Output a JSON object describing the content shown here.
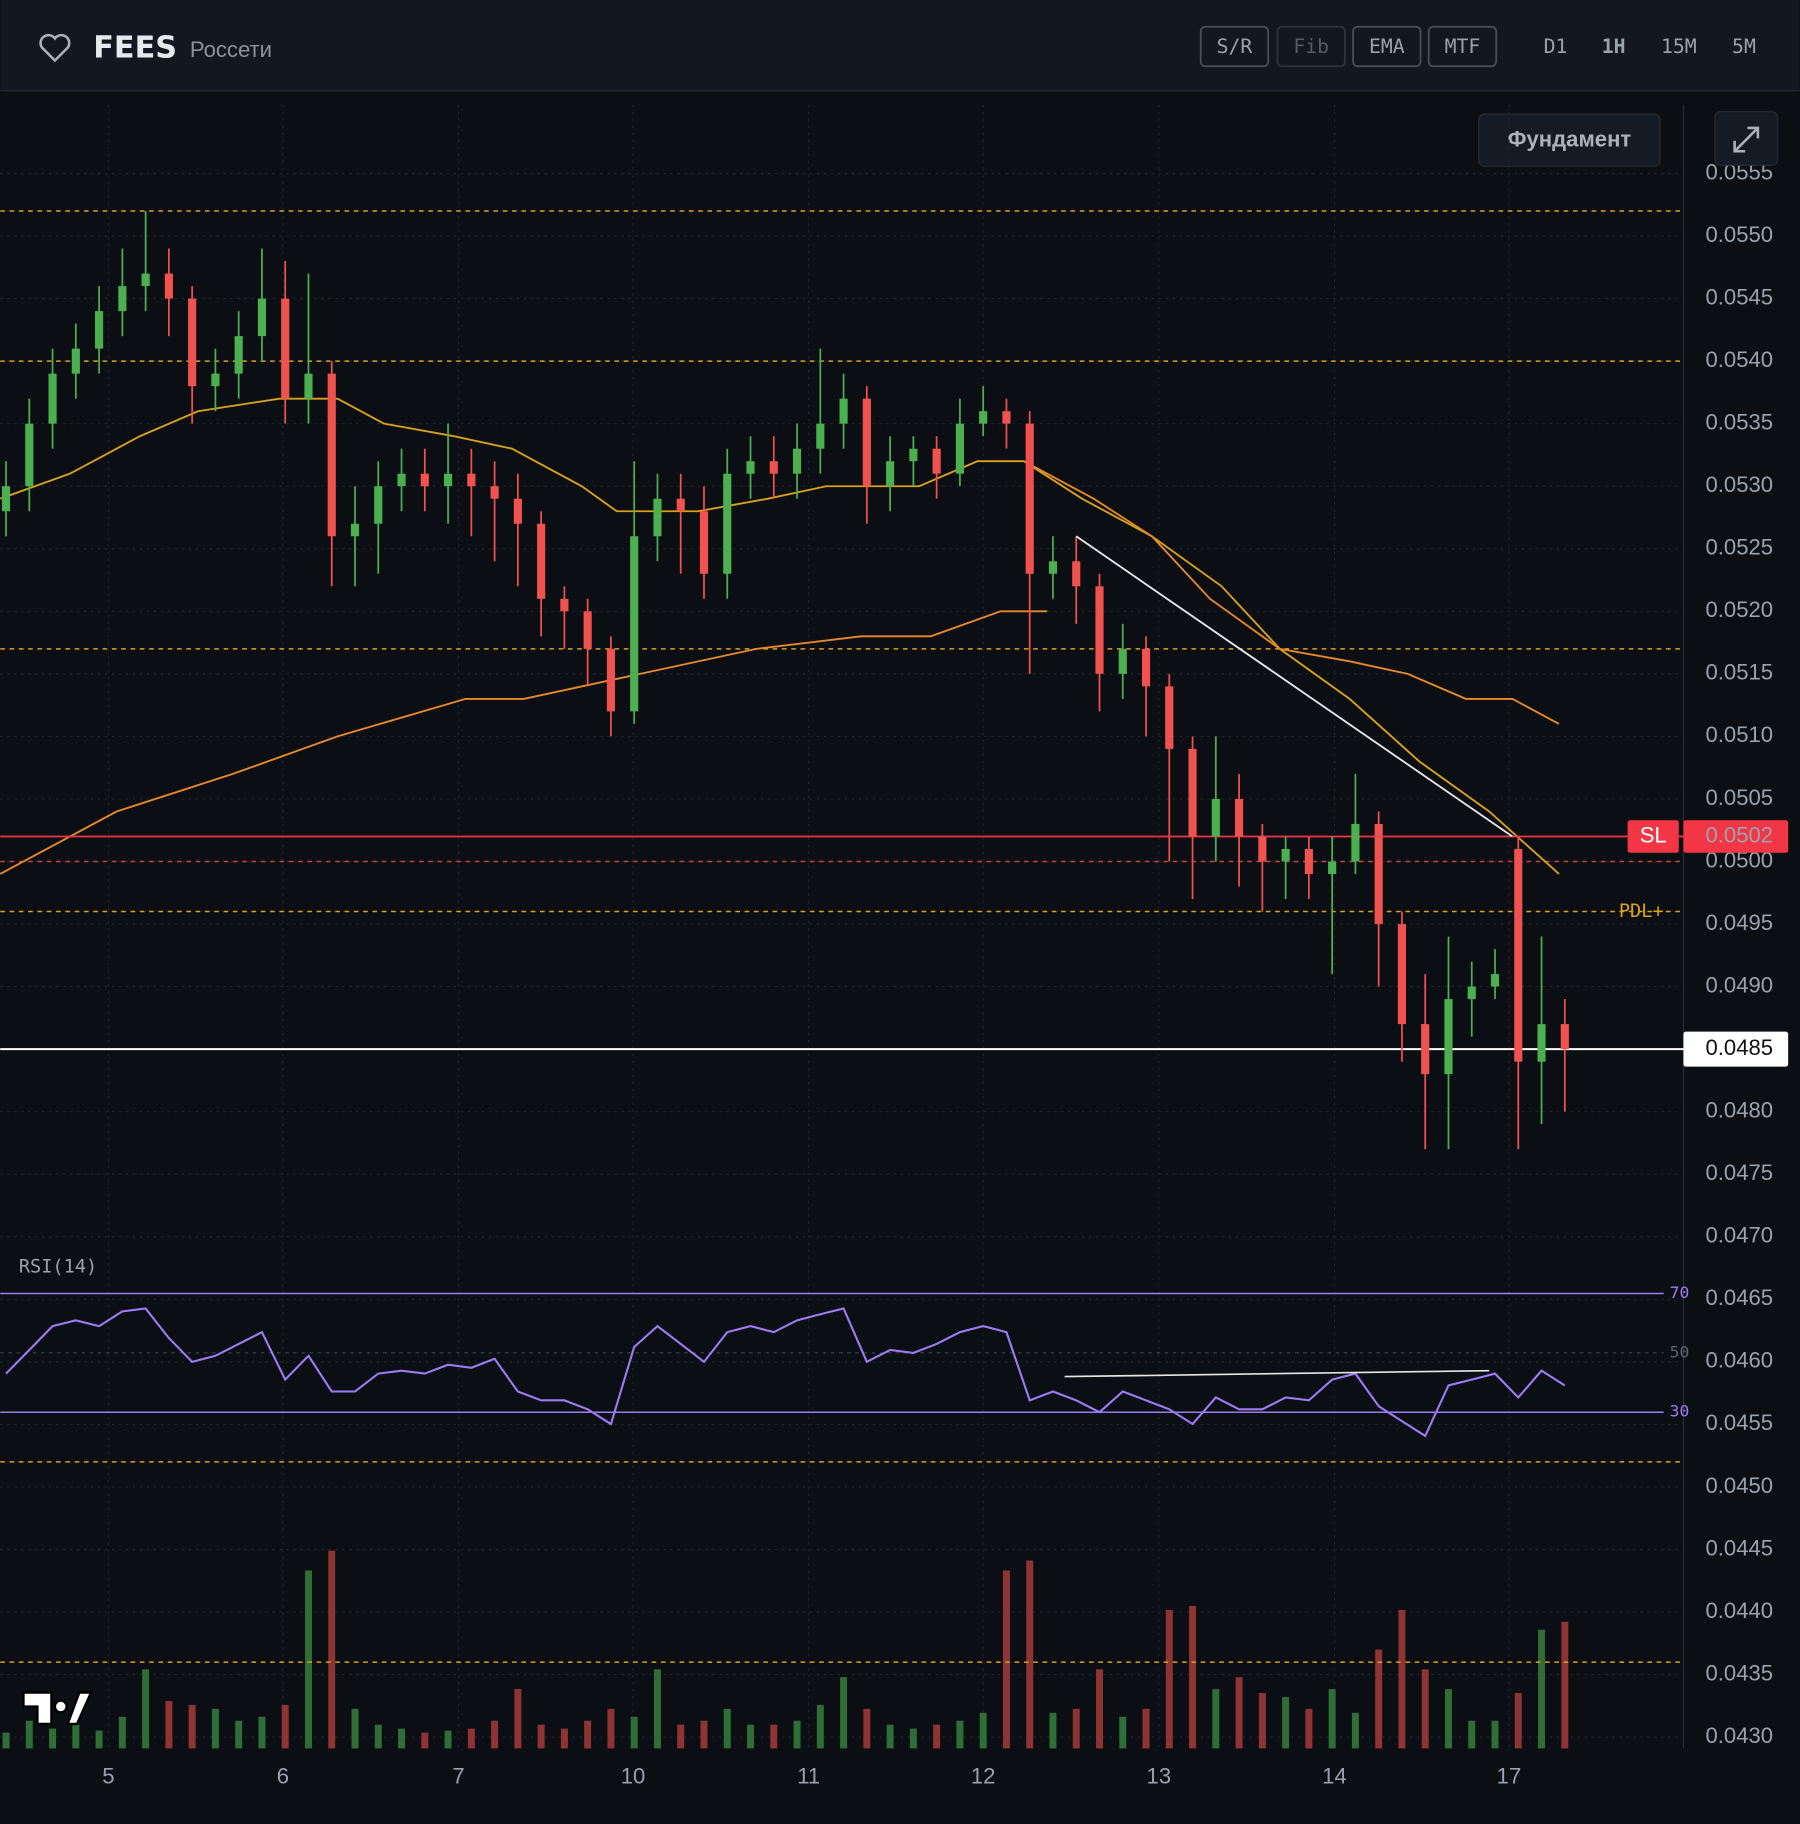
{
  "header": {
    "symbol": "FEES",
    "name": "Россети",
    "tools": [
      "S/R",
      "Fib",
      "EMA",
      "MTF"
    ],
    "timeframes": [
      "D1",
      "1H",
      "15M",
      "5M"
    ],
    "active_timeframe": 1,
    "button": "Фундамент"
  },
  "chart_data": {
    "type": "candlestick",
    "open": [
      0.0528,
      0.053,
      0.0535,
      0.0539,
      0.0541,
      0.0544,
      0.0546,
      0.0547,
      0.0545,
      0.0538,
      0.0539,
      0.0542,
      0.0545,
      0.0537,
      0.0539,
      0.0526,
      0.0527,
      0.053,
      0.0531,
      0.053,
      0.0531,
      0.053,
      0.0529,
      0.0527,
      0.0521,
      0.052,
      0.0517,
      0.0512,
      0.0526,
      0.0529,
      0.0528,
      0.0523,
      0.0531,
      0.0532,
      0.0531,
      0.0533,
      0.0535,
      0.0537,
      0.053,
      0.0532,
      0.0533,
      0.0531,
      0.0535,
      0.0536,
      0.0535,
      0.0523,
      0.0524,
      0.0522,
      0.0515,
      0.0517,
      0.0514,
      0.0509,
      0.0502,
      0.0505,
      0.0502,
      0.05,
      0.0501,
      0.0499,
      0.05,
      0.0503,
      0.0495,
      0.0487,
      0.0483,
      0.0489,
      0.049,
      0.0501,
      0.0484,
      0.0487
    ],
    "high": [
      0.0532,
      0.0537,
      0.0541,
      0.0543,
      0.0546,
      0.0549,
      0.0552,
      0.0549,
      0.0546,
      0.0541,
      0.0544,
      0.0549,
      0.0548,
      0.0547,
      0.054,
      0.053,
      0.0532,
      0.0533,
      0.0533,
      0.0535,
      0.0533,
      0.0532,
      0.0531,
      0.0528,
      0.0522,
      0.0521,
      0.0518,
      0.0532,
      0.0531,
      0.0531,
      0.053,
      0.0533,
      0.0534,
      0.0534,
      0.0535,
      0.0541,
      0.0539,
      0.0538,
      0.0534,
      0.0534,
      0.0534,
      0.0537,
      0.0538,
      0.0537,
      0.0536,
      0.0526,
      0.0526,
      0.0523,
      0.0519,
      0.0518,
      0.0515,
      0.051,
      0.051,
      0.0507,
      0.0503,
      0.0502,
      0.0502,
      0.0502,
      0.0507,
      0.0504,
      0.0496,
      0.0491,
      0.0494,
      0.0492,
      0.0493,
      0.0502,
      0.0494,
      0.0489
    ],
    "low": [
      0.0526,
      0.0528,
      0.0533,
      0.0537,
      0.0539,
      0.0542,
      0.0544,
      0.0542,
      0.0535,
      0.0536,
      0.0537,
      0.054,
      0.0535,
      0.0535,
      0.0522,
      0.0522,
      0.0523,
      0.0528,
      0.0528,
      0.0527,
      0.0526,
      0.0524,
      0.0522,
      0.0518,
      0.0517,
      0.0514,
      0.051,
      0.0511,
      0.0524,
      0.0523,
      0.0521,
      0.0521,
      0.0529,
      0.0529,
      0.0529,
      0.0531,
      0.0533,
      0.0527,
      0.0528,
      0.053,
      0.0529,
      0.053,
      0.0534,
      0.0533,
      0.0515,
      0.0521,
      0.0519,
      0.0512,
      0.0513,
      0.051,
      0.05,
      0.0497,
      0.05,
      0.0498,
      0.0496,
      0.0497,
      0.0497,
      0.0491,
      0.0499,
      0.049,
      0.0484,
      0.0477,
      0.0477,
      0.0486,
      0.0489,
      0.0477,
      0.0479,
      0.048
    ],
    "close": [
      0.053,
      0.0535,
      0.0539,
      0.0541,
      0.0544,
      0.0546,
      0.0547,
      0.0545,
      0.0538,
      0.0539,
      0.0542,
      0.0545,
      0.0537,
      0.0539,
      0.0526,
      0.0527,
      0.053,
      0.0531,
      0.053,
      0.0531,
      0.053,
      0.0529,
      0.0527,
      0.0521,
      0.052,
      0.0517,
      0.0512,
      0.0526,
      0.0529,
      0.0528,
      0.0523,
      0.0531,
      0.0532,
      0.0531,
      0.0533,
      0.0535,
      0.0537,
      0.053,
      0.0532,
      0.0533,
      0.0531,
      0.0535,
      0.0536,
      0.0535,
      0.0523,
      0.0524,
      0.0522,
      0.0515,
      0.0517,
      0.0514,
      0.0509,
      0.0502,
      0.0505,
      0.0502,
      0.05,
      0.0501,
      0.0499,
      0.05,
      0.0503,
      0.0495,
      0.0487,
      0.0483,
      0.0489,
      0.049,
      0.0491,
      0.0484,
      0.0487,
      0.0485
    ],
    "volume": [
      8,
      14,
      10,
      12,
      9,
      16,
      40,
      24,
      22,
      20,
      14,
      16,
      22,
      90,
      100,
      20,
      12,
      10,
      8,
      9,
      10,
      14,
      30,
      12,
      10,
      14,
      20,
      16,
      40,
      12,
      14,
      20,
      12,
      12,
      14,
      22,
      36,
      20,
      12,
      10,
      12,
      14,
      18,
      90,
      95,
      18,
      20,
      40,
      16,
      20,
      70,
      72,
      30,
      36,
      28,
      26,
      20,
      30,
      18,
      50,
      70,
      40,
      30,
      14,
      14,
      28,
      60,
      64
    ],
    "volume_lim": [
      0,
      100
    ],
    "up_color": "#4caf50",
    "down_color": "#f0524f",
    "up_volume_color": "#2f6e36",
    "down_volume_color": "#8e3434",
    "xlim": [
      -0.25,
      72.1
    ],
    "ylim": [
      0.04291,
      0.05605
    ],
    "xticks": [
      {
        "value": 4.4,
        "label": "5"
      },
      {
        "value": 11.9,
        "label": "6"
      },
      {
        "value": 19.45,
        "label": "7"
      },
      {
        "value": 26.95,
        "label": "10"
      },
      {
        "value": 34.5,
        "label": "11"
      },
      {
        "value": 42,
        "label": "12"
      },
      {
        "value": 49.55,
        "label": "13"
      },
      {
        "value": 57.1,
        "label": "14"
      },
      {
        "value": 64.6,
        "label": "17"
      }
    ],
    "yticks": [
      {
        "value": 0.043,
        "label": "0.0430"
      },
      {
        "value": 0.0435,
        "label": "0.0435"
      },
      {
        "value": 0.044,
        "label": "0.0440"
      },
      {
        "value": 0.0445,
        "label": "0.0445"
      },
      {
        "value": 0.045,
        "label": "0.0450"
      },
      {
        "value": 0.0455,
        "label": "0.0455"
      },
      {
        "value": 0.046,
        "label": "0.0460"
      },
      {
        "value": 0.0465,
        "label": "0.0465"
      },
      {
        "value": 0.047,
        "label": "0.0470"
      },
      {
        "value": 0.0475,
        "label": "0.0475"
      },
      {
        "value": 0.048,
        "label": "0.0480"
      },
      {
        "value": 0.0485,
        "label": "0.0485"
      },
      {
        "value": 0.049,
        "label": "0.0490"
      },
      {
        "value": 0.0495,
        "label": "0.0495"
      },
      {
        "value": 0.05,
        "label": "0.0500"
      },
      {
        "value": 0.0505,
        "label": "0.0505"
      },
      {
        "value": 0.051,
        "label": "0.0510"
      },
      {
        "value": 0.0515,
        "label": "0.0515"
      },
      {
        "value": 0.052,
        "label": "0.0520"
      },
      {
        "value": 0.0525,
        "label": "0.0525"
      },
      {
        "value": 0.053,
        "label": "0.0530"
      },
      {
        "value": 0.0535,
        "label": "0.0535"
      },
      {
        "value": 0.054,
        "label": "0.0540"
      },
      {
        "value": 0.0545,
        "label": "0.0545"
      },
      {
        "value": 0.055,
        "label": "0.0550"
      },
      {
        "value": 0.0555,
        "label": "0.0555"
      }
    ],
    "grid": true,
    "lines": [
      {
        "color": "#d9a21b",
        "x": [
          -0.25,
          2.75,
          5.75,
          8.25,
          11.75,
          14.25,
          16.25,
          19.25,
          21.75,
          24.75,
          26.25,
          29.75,
          32.75,
          35.25,
          39.25,
          41.75,
          43.75,
          46.25,
          49.25,
          52.25,
          54.75,
          57.75,
          60.75,
          63.75,
          66.75
        ],
        "values": [
          0.0529,
          0.0531,
          0.0534,
          0.0536,
          0.0537,
          0.0537,
          0.0535,
          0.0534,
          0.0533,
          0.053,
          0.0528,
          0.0528,
          0.0529,
          0.053,
          0.053,
          0.0532,
          0.0532,
          0.0529,
          0.0526,
          0.0522,
          0.0517,
          0.0513,
          0.0508,
          0.0504,
          0.0499
        ]
      },
      {
        "color": "#e8892a",
        "x": [
          43.75,
          46.75,
          49.25,
          51.75,
          54.75,
          57.75,
          60.25,
          62.75,
          64.75,
          66.75
        ],
        "values": [
          0.0532,
          0.0529,
          0.0526,
          0.0521,
          0.0517,
          0.0516,
          0.0515,
          0.0513,
          0.0513,
          0.0511
        ]
      },
      {
        "color": "#e8892a",
        "x": [
          -0.25,
          4.75,
          9.75,
          14.25,
          19.75,
          22.25,
          27.25,
          32.25,
          36.75,
          39.75,
          42.75,
          44.75
        ],
        "values": [
          0.0499,
          0.0504,
          0.0507,
          0.051,
          0.0513,
          0.0513,
          0.0515,
          0.0517,
          0.0518,
          0.0518,
          0.052,
          0.052
        ]
      }
    ],
    "trendlines": [
      {
        "color": "#e6e6e6",
        "x": [
          46,
          64.75
        ],
        "values": [
          0.0526,
          0.0502
        ]
      }
    ],
    "dashed_levels": [
      {
        "value": 0.0552,
        "color": "#d9a21b"
      },
      {
        "value": 0.054,
        "color": "#d9a21b"
      },
      {
        "value": 0.0517,
        "color": "#d9a21b"
      },
      {
        "value": 0.05,
        "color": "#c2453f"
      },
      {
        "name": "PDL+",
        "value": 0.0496,
        "color": "#d9a21b"
      },
      {
        "value": 0.0452,
        "color": "#d9a21b"
      },
      {
        "value": 0.0436,
        "color": "#d9a21b"
      }
    ],
    "sl": {
      "name": "SL",
      "value": 0.0502,
      "value_label": "0.0502",
      "color": "#f23645"
    },
    "last_price": {
      "value": 0.0485,
      "value_label": "0.0485",
      "color": "#ffffff"
    },
    "rsi": {
      "label": "RSI(14)",
      "color": "#9c7cf4",
      "lim": [
        20,
        80
      ],
      "ticks": [
        70,
        50,
        30
      ],
      "values": [
        43,
        51,
        59,
        61,
        59,
        64,
        65,
        55,
        47,
        49,
        53,
        57,
        41,
        49,
        37,
        37,
        43,
        44,
        43,
        46,
        45,
        48,
        37,
        34,
        34,
        31,
        26,
        52,
        59,
        53,
        47,
        57,
        59,
        57,
        61,
        63,
        65,
        47,
        51,
        50,
        53,
        57,
        59,
        57,
        34,
        37,
        34,
        30,
        37,
        34,
        31,
        26,
        35,
        31,
        31,
        35,
        34,
        41,
        43,
        32,
        27,
        22,
        39,
        41,
        43,
        35,
        44,
        39
      ],
      "trendline": {
        "color": "#e6e6e6",
        "x": [
          45.5,
          63.75
        ],
        "values": [
          42,
          44
        ]
      }
    }
  }
}
